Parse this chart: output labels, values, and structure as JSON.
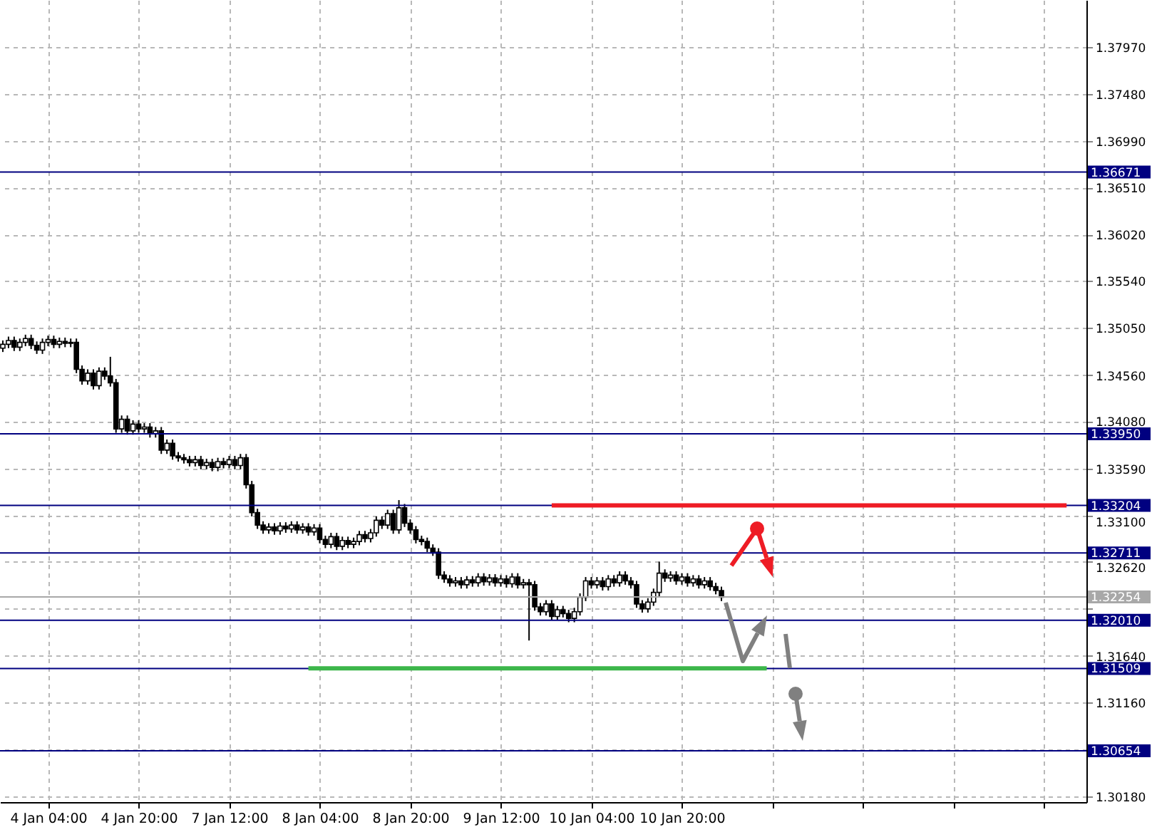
{
  "chart_data": {
    "type": "candlestick",
    "categories": [
      null,
      null,
      null,
      null,
      null,
      null,
      null,
      null,
      "4 Jan 04:00",
      null,
      null,
      null,
      null,
      null,
      null,
      null,
      null,
      null,
      null,
      null,
      null,
      null,
      null,
      null,
      "4 Jan 20:00",
      null,
      null,
      null,
      null,
      null,
      null,
      null,
      null,
      null,
      null,
      null,
      null,
      null,
      null,
      null,
      "7 Jan 12:00",
      null,
      null,
      null,
      null,
      null,
      null,
      null,
      null,
      null,
      null,
      null,
      null,
      null,
      null,
      null,
      "8 Jan 04:00",
      null,
      null,
      null,
      null,
      null,
      null,
      null,
      null,
      null,
      null,
      null,
      null,
      null,
      null,
      null,
      "8 Jan 20:00",
      null,
      null,
      null,
      null,
      null,
      null,
      null,
      null,
      null,
      null,
      null,
      null,
      null,
      null,
      null,
      "9 Jan 12:00",
      null,
      null,
      null,
      null,
      null,
      null,
      null,
      null,
      null,
      null,
      null,
      null,
      null,
      null,
      null,
      "10 Jan 04:00",
      null,
      null,
      null,
      null,
      null,
      null,
      null,
      null,
      null,
      null,
      null,
      null,
      null,
      null,
      null,
      "10 Jan 20:00",
      null,
      null,
      null,
      null,
      null,
      null,
      null,
      null,
      null,
      null,
      null,
      null,
      null,
      null,
      null,
      null,
      null,
      null,
      null,
      null,
      null,
      null,
      null,
      null,
      null,
      null,
      null,
      null,
      null,
      null,
      null,
      null,
      null,
      null,
      null,
      null,
      null,
      null,
      null,
      null,
      null,
      null,
      null,
      null,
      null,
      null,
      null,
      null,
      null,
      null,
      null,
      null,
      null,
      null,
      null,
      null,
      null,
      null,
      null,
      null,
      null,
      null,
      null,
      null,
      null,
      null,
      null,
      null,
      null,
      null,
      null
    ],
    "ohlc": [
      [
        1.3484,
        1.3492,
        1.348,
        1.3488
      ],
      [
        1.3488,
        1.3496,
        1.3484,
        1.3492
      ],
      [
        1.3492,
        1.3496,
        1.3481,
        1.3485
      ],
      [
        1.3485,
        1.3494,
        1.3481,
        1.349
      ],
      [
        1.349,
        1.3498,
        1.3486,
        1.3494
      ],
      [
        1.3494,
        1.3498,
        1.3483,
        1.3487
      ],
      [
        1.3487,
        1.3491,
        1.3478,
        1.3482
      ],
      [
        1.3482,
        1.3494,
        1.3478,
        1.349
      ],
      [
        1.349,
        1.3497,
        1.3486,
        1.3493
      ],
      [
        1.3493,
        1.3497,
        1.3484,
        1.3488
      ],
      [
        1.3488,
        1.3495,
        1.3484,
        1.3491
      ],
      [
        1.3491,
        1.3495,
        1.3485,
        1.3489
      ],
      [
        1.3489,
        1.3494,
        1.3485,
        1.349
      ],
      [
        1.349,
        1.3494,
        1.3458,
        1.3462
      ],
      [
        1.3462,
        1.3466,
        1.3446,
        1.345
      ],
      [
        1.345,
        1.3462,
        1.3446,
        1.3458
      ],
      [
        1.3458,
        1.3462,
        1.3441,
        1.3445
      ],
      [
        1.3445,
        1.3464,
        1.3441,
        1.346
      ],
      [
        1.346,
        1.3464,
        1.3451,
        1.3455
      ],
      [
        1.3455,
        1.3475,
        1.3444,
        1.3448
      ],
      [
        1.3448,
        1.3452,
        1.3396,
        1.34
      ],
      [
        1.34,
        1.3414,
        1.3396,
        1.341
      ],
      [
        1.341,
        1.3414,
        1.3394,
        1.3398
      ],
      [
        1.3398,
        1.3409,
        1.3394,
        1.3405
      ],
      [
        1.3405,
        1.3409,
        1.3396,
        1.34
      ],
      [
        1.34,
        1.3406,
        1.3396,
        1.3402
      ],
      [
        1.3402,
        1.3406,
        1.3391,
        1.3395
      ],
      [
        1.3395,
        1.3402,
        1.3391,
        1.3398
      ],
      [
        1.3398,
        1.3402,
        1.3374,
        1.3378
      ],
      [
        1.3378,
        1.3389,
        1.3374,
        1.3385
      ],
      [
        1.3385,
        1.3389,
        1.3368,
        1.3372
      ],
      [
        1.3372,
        1.3376,
        1.3366,
        1.337
      ],
      [
        1.337,
        1.3374,
        1.3364,
        1.3368
      ],
      [
        1.3368,
        1.3372,
        1.3361,
        1.3365
      ],
      [
        1.3365,
        1.3372,
        1.3361,
        1.3368
      ],
      [
        1.3368,
        1.3372,
        1.3358,
        1.3362
      ],
      [
        1.3362,
        1.3369,
        1.3358,
        1.3365
      ],
      [
        1.3365,
        1.3369,
        1.3356,
        1.336
      ],
      [
        1.336,
        1.337,
        1.3356,
        1.3366
      ],
      [
        1.3366,
        1.337,
        1.3359,
        1.3363
      ],
      [
        1.3363,
        1.3372,
        1.3359,
        1.3368
      ],
      [
        1.3368,
        1.3372,
        1.3358,
        1.3362
      ],
      [
        1.3362,
        1.3374,
        1.3358,
        1.337
      ],
      [
        1.337,
        1.3374,
        1.3338,
        1.3342
      ],
      [
        1.3342,
        1.3346,
        1.3309,
        1.3313
      ],
      [
        1.3313,
        1.3317,
        1.3296,
        1.33
      ],
      [
        1.33,
        1.3304,
        1.3291,
        1.3295
      ],
      [
        1.3295,
        1.3302,
        1.3291,
        1.3298
      ],
      [
        1.3298,
        1.3302,
        1.329,
        1.3294
      ],
      [
        1.3294,
        1.3303,
        1.329,
        1.3299
      ],
      [
        1.3299,
        1.3303,
        1.3292,
        1.3296
      ],
      [
        1.3296,
        1.3304,
        1.3292,
        1.33
      ],
      [
        1.33,
        1.3304,
        1.3291,
        1.3295
      ],
      [
        1.3295,
        1.3302,
        1.3291,
        1.3298
      ],
      [
        1.3298,
        1.3302,
        1.3289,
        1.3293
      ],
      [
        1.3293,
        1.3301,
        1.3289,
        1.3297
      ],
      [
        1.3297,
        1.3301,
        1.3281,
        1.3285
      ],
      [
        1.3285,
        1.3289,
        1.3276,
        1.328
      ],
      [
        1.328,
        1.3292,
        1.3276,
        1.3288
      ],
      [
        1.3288,
        1.3292,
        1.3274,
        1.3278
      ],
      [
        1.3278,
        1.3288,
        1.3274,
        1.3284
      ],
      [
        1.3284,
        1.3288,
        1.3276,
        1.328
      ],
      [
        1.328,
        1.3287,
        1.3276,
        1.3283
      ],
      [
        1.3283,
        1.3294,
        1.3279,
        1.329
      ],
      [
        1.329,
        1.3294,
        1.3282,
        1.3286
      ],
      [
        1.3286,
        1.3296,
        1.3282,
        1.3292
      ],
      [
        1.3292,
        1.3309,
        1.3288,
        1.3305
      ],
      [
        1.3305,
        1.3309,
        1.3296,
        1.33
      ],
      [
        1.33,
        1.3316,
        1.3296,
        1.3312
      ],
      [
        1.3312,
        1.3316,
        1.3291,
        1.3295
      ],
      [
        1.3295,
        1.3326,
        1.3291,
        1.3318
      ],
      [
        1.3318,
        1.3322,
        1.3298,
        1.3302
      ],
      [
        1.3302,
        1.3306,
        1.3291,
        1.3295
      ],
      [
        1.3295,
        1.3299,
        1.3281,
        1.3285
      ],
      [
        1.3285,
        1.3289,
        1.3279,
        1.3283
      ],
      [
        1.3283,
        1.3287,
        1.3272,
        1.3276
      ],
      [
        1.3276,
        1.328,
        1.3268,
        1.3272
      ],
      [
        1.3272,
        1.3276,
        1.3244,
        1.3248
      ],
      [
        1.3248,
        1.3252,
        1.324,
        1.3244
      ],
      [
        1.3244,
        1.3248,
        1.3236,
        1.324
      ],
      [
        1.324,
        1.3246,
        1.3236,
        1.3242
      ],
      [
        1.3242,
        1.3246,
        1.3234,
        1.3238
      ],
      [
        1.3238,
        1.3247,
        1.3234,
        1.3243
      ],
      [
        1.3243,
        1.3247,
        1.3236,
        1.324
      ],
      [
        1.324,
        1.325,
        1.3236,
        1.3246
      ],
      [
        1.3246,
        1.325,
        1.3237,
        1.3241
      ],
      [
        1.3241,
        1.3249,
        1.3237,
        1.3245
      ],
      [
        1.3245,
        1.3249,
        1.3236,
        1.324
      ],
      [
        1.324,
        1.3248,
        1.3236,
        1.3244
      ],
      [
        1.3244,
        1.3248,
        1.3235,
        1.3239
      ],
      [
        1.3239,
        1.325,
        1.3235,
        1.3246
      ],
      [
        1.3246,
        1.325,
        1.3234,
        1.3238
      ],
      [
        1.3238,
        1.3244,
        1.3234,
        1.324
      ],
      [
        1.324,
        1.3244,
        1.318,
        1.3238
      ],
      [
        1.3238,
        1.3242,
        1.3211,
        1.3215
      ],
      [
        1.3215,
        1.3219,
        1.3206,
        1.321
      ],
      [
        1.321,
        1.3222,
        1.3206,
        1.3218
      ],
      [
        1.3218,
        1.3222,
        1.3201,
        1.3205
      ],
      [
        1.3205,
        1.3216,
        1.3201,
        1.3212
      ],
      [
        1.3212,
        1.3216,
        1.3204,
        1.3208
      ],
      [
        1.3208,
        1.3212,
        1.3199,
        1.3203
      ],
      [
        1.3203,
        1.3214,
        1.3199,
        1.321
      ],
      [
        1.321,
        1.3229,
        1.3206,
        1.3225
      ],
      [
        1.3225,
        1.3246,
        1.3221,
        1.3242
      ],
      [
        1.3242,
        1.3246,
        1.3234,
        1.3238
      ],
      [
        1.3238,
        1.3246,
        1.3234,
        1.3242
      ],
      [
        1.3242,
        1.3246,
        1.3232,
        1.3236
      ],
      [
        1.3236,
        1.3248,
        1.3232,
        1.3244
      ],
      [
        1.3244,
        1.3248,
        1.3236,
        1.324
      ],
      [
        1.324,
        1.3252,
        1.3236,
        1.3248
      ],
      [
        1.3248,
        1.3252,
        1.3238,
        1.3242
      ],
      [
        1.3242,
        1.3246,
        1.3234,
        1.3238
      ],
      [
        1.3238,
        1.3242,
        1.3214,
        1.3218
      ],
      [
        1.3218,
        1.3222,
        1.3209,
        1.3213
      ],
      [
        1.3213,
        1.3224,
        1.3209,
        1.322
      ],
      [
        1.322,
        1.3234,
        1.3216,
        1.323
      ],
      [
        1.323,
        1.3262,
        1.3226,
        1.325
      ],
      [
        1.325,
        1.3254,
        1.3241,
        1.3245
      ],
      [
        1.3245,
        1.3252,
        1.3241,
        1.3248
      ],
      [
        1.3248,
        1.3252,
        1.3238,
        1.3242
      ],
      [
        1.3242,
        1.325,
        1.3238,
        1.3246
      ],
      [
        1.3246,
        1.325,
        1.3236,
        1.324
      ],
      [
        1.324,
        1.3248,
        1.3236,
        1.3244
      ],
      [
        1.3244,
        1.3248,
        1.3234,
        1.3238
      ],
      [
        1.3238,
        1.3246,
        1.3234,
        1.3242
      ],
      [
        1.3242,
        1.3246,
        1.3232,
        1.3236
      ],
      [
        1.3236,
        1.324,
        1.3228,
        1.3232
      ],
      [
        1.3232,
        1.3236,
        1.3221,
        1.3225
      ],
      null,
      null,
      null,
      null,
      null,
      null,
      null,
      null,
      null,
      null,
      null,
      null,
      null,
      null,
      null,
      null,
      null,
      null,
      null,
      null,
      null,
      null,
      null,
      null,
      null,
      null,
      null,
      null,
      null,
      null,
      null,
      null,
      null,
      null,
      null,
      null,
      null,
      null,
      null,
      null,
      null,
      null,
      null,
      null,
      null,
      null,
      null,
      null,
      null,
      null,
      null,
      null,
      null,
      null,
      null,
      null,
      null,
      null,
      null,
      null,
      null,
      null,
      null,
      null
    ],
    "series": [
      {
        "type": "line",
        "color": "#3cb64a",
        "values": [
          null,
          null,
          null,
          null,
          null,
          null,
          null,
          null,
          null,
          null,
          null,
          null,
          null,
          null,
          null,
          null,
          null,
          null,
          null,
          null,
          null,
          null,
          null,
          null,
          null,
          null,
          null,
          null,
          null,
          null,
          null,
          null,
          null,
          null,
          null,
          null,
          null,
          null,
          null,
          null,
          null,
          null,
          null,
          null,
          null,
          null,
          null,
          null,
          null,
          null,
          null,
          null,
          null,
          null,
          1.3151,
          1.3151,
          1.3151,
          1.3151,
          1.3151,
          1.3151,
          1.3151,
          1.3151,
          1.3151,
          1.3151,
          1.3151,
          1.3151,
          1.3151,
          1.3151,
          1.3151,
          1.3151,
          1.3151,
          1.3151,
          1.3151,
          1.3151,
          1.3151,
          1.3151,
          1.3151,
          1.3151,
          1.3151,
          1.3151,
          1.3151,
          1.3151,
          1.3151,
          1.3151,
          1.3151,
          1.3151,
          1.3151,
          1.3151,
          1.3151,
          1.3151,
          1.3151,
          1.3151,
          1.3151,
          1.3151,
          1.3151,
          1.3151,
          1.3151,
          1.3151,
          1.3151,
          1.3151,
          1.3151,
          1.3151,
          1.3151,
          1.3151,
          1.3151,
          1.3151,
          1.3151,
          1.3151,
          1.3151,
          1.3151,
          1.3151,
          1.3151,
          1.3151,
          1.3151,
          1.3151,
          1.3151,
          1.3151,
          1.3151,
          1.3151,
          1.3151,
          1.3151,
          1.3151,
          1.3151,
          1.3151,
          1.3151,
          1.3151,
          1.3151,
          1.3151,
          1.3151,
          1.3151,
          1.3151,
          1.3151,
          1.3151,
          1.3151,
          1.3151,
          1.3151,
          null,
          null,
          null,
          null,
          null,
          null,
          null,
          null,
          null,
          null,
          null,
          null,
          null,
          null,
          null,
          null,
          null,
          null,
          null,
          null,
          null,
          null,
          null,
          null,
          null,
          null,
          null,
          null,
          null,
          null,
          null,
          null,
          null,
          null,
          null,
          null,
          null,
          null,
          null,
          null,
          null,
          null,
          null,
          null,
          null,
          null,
          null,
          null,
          null,
          null,
          null,
          null,
          null,
          null,
          null,
          null
        ]
      },
      {
        "type": "line",
        "color": "#ee1c25",
        "values": [
          null,
          null,
          null,
          null,
          null,
          null,
          null,
          null,
          null,
          null,
          null,
          null,
          null,
          null,
          null,
          null,
          null,
          null,
          null,
          null,
          null,
          null,
          null,
          null,
          null,
          null,
          null,
          null,
          null,
          null,
          null,
          null,
          null,
          null,
          null,
          null,
          null,
          null,
          null,
          null,
          null,
          null,
          null,
          null,
          null,
          null,
          null,
          null,
          null,
          null,
          null,
          null,
          null,
          null,
          null,
          null,
          null,
          null,
          null,
          null,
          null,
          null,
          null,
          null,
          null,
          null,
          null,
          null,
          null,
          null,
          null,
          null,
          null,
          null,
          null,
          null,
          null,
          null,
          null,
          null,
          null,
          null,
          null,
          null,
          null,
          null,
          null,
          null,
          null,
          null,
          null,
          null,
          null,
          null,
          null,
          null,
          null,
          1.33204,
          1.33204,
          1.33204,
          1.33204,
          1.33204,
          1.33204,
          1.33204,
          1.33204,
          1.33204,
          1.33204,
          1.33204,
          1.33204,
          1.33204,
          1.33204,
          1.33204,
          1.33204,
          1.33204,
          1.33204,
          1.33204,
          1.33204,
          1.33204,
          1.33204,
          1.33204,
          1.33204,
          1.33204,
          1.33204,
          1.33204,
          1.33204,
          1.33204,
          1.33204,
          1.33204,
          1.33204,
          1.33204,
          1.33204,
          1.33204,
          1.33204,
          1.33204,
          1.33204,
          1.33204,
          1.33204,
          1.33204,
          1.33204,
          1.33204,
          1.33204,
          1.33204,
          1.33204,
          1.33204,
          1.33204,
          1.33204,
          1.33204,
          1.33204,
          1.33204,
          1.33204,
          1.33204,
          1.33204,
          1.33204,
          1.33204,
          1.33204,
          1.33204,
          1.33204,
          1.33204,
          1.33204,
          1.33204,
          1.33204,
          1.33204,
          1.33204,
          1.33204,
          1.33204,
          1.33204,
          1.33204,
          1.33204,
          1.33204,
          1.33204,
          1.33204,
          1.33204,
          1.33204,
          1.33204,
          1.33204,
          1.33204,
          1.33204,
          1.33204,
          1.33204,
          1.33204,
          1.33204,
          1.33204,
          1.33204,
          1.33204,
          1.33204,
          1.33204,
          1.33204,
          1.33204,
          1.33204,
          null,
          null,
          null
        ]
      }
    ],
    "ylim": [
      1.3012,
      1.3846
    ],
    "yticks": [
      {
        "value": 1.3797,
        "label": "1.37970"
      },
      {
        "value": 1.3748,
        "label": "1.37480"
      },
      {
        "value": 1.3699,
        "label": "1.36990"
      },
      {
        "value": 1.3651,
        "label": "1.36510"
      },
      {
        "value": 1.3602,
        "label": "1.36020"
      },
      {
        "value": 1.3554,
        "label": "1.35540"
      },
      {
        "value": 1.3505,
        "label": "1.35050"
      },
      {
        "value": 1.3456,
        "label": "1.34560"
      },
      {
        "value": 1.3408,
        "label": "1.34080"
      },
      {
        "value": 1.3359,
        "label": "1.33590"
      },
      {
        "value": 1.331,
        "label": "1.33100"
      },
      {
        "value": 1.3262,
        "label": "1.32620"
      },
      {
        "value": 1.3213,
        "label": null
      },
      {
        "value": 1.3164,
        "label": "1.31640"
      },
      {
        "value": 1.3116,
        "label": "1.31160"
      },
      {
        "value": 1.3067,
        "label": null
      },
      {
        "value": 1.3018,
        "label": "1.30180"
      }
    ],
    "grid": true,
    "ref_lines": [
      {
        "axis": "y",
        "value": 1.36671,
        "label": "1.36671",
        "color": "#000080"
      },
      {
        "axis": "y",
        "value": 1.3395,
        "label": "1.33950",
        "color": "#000080"
      },
      {
        "axis": "y",
        "value": 1.33204,
        "label": "1.33204",
        "color": "#000080"
      },
      {
        "axis": "y",
        "value": 1.32711,
        "label": "1.32711",
        "color": "#000080"
      },
      {
        "axis": "y",
        "value": 1.32254,
        "label": "1.32254",
        "color": "#a8a8a8"
      },
      {
        "axis": "y",
        "value": 1.3201,
        "label": "1.32010",
        "color": "#000080"
      },
      {
        "axis": "y",
        "value": 1.31509,
        "label": "1.31509",
        "color": "#000080"
      },
      {
        "axis": "y",
        "value": 1.30654,
        "label": "1.30654",
        "color": "#000080"
      }
    ]
  }
}
